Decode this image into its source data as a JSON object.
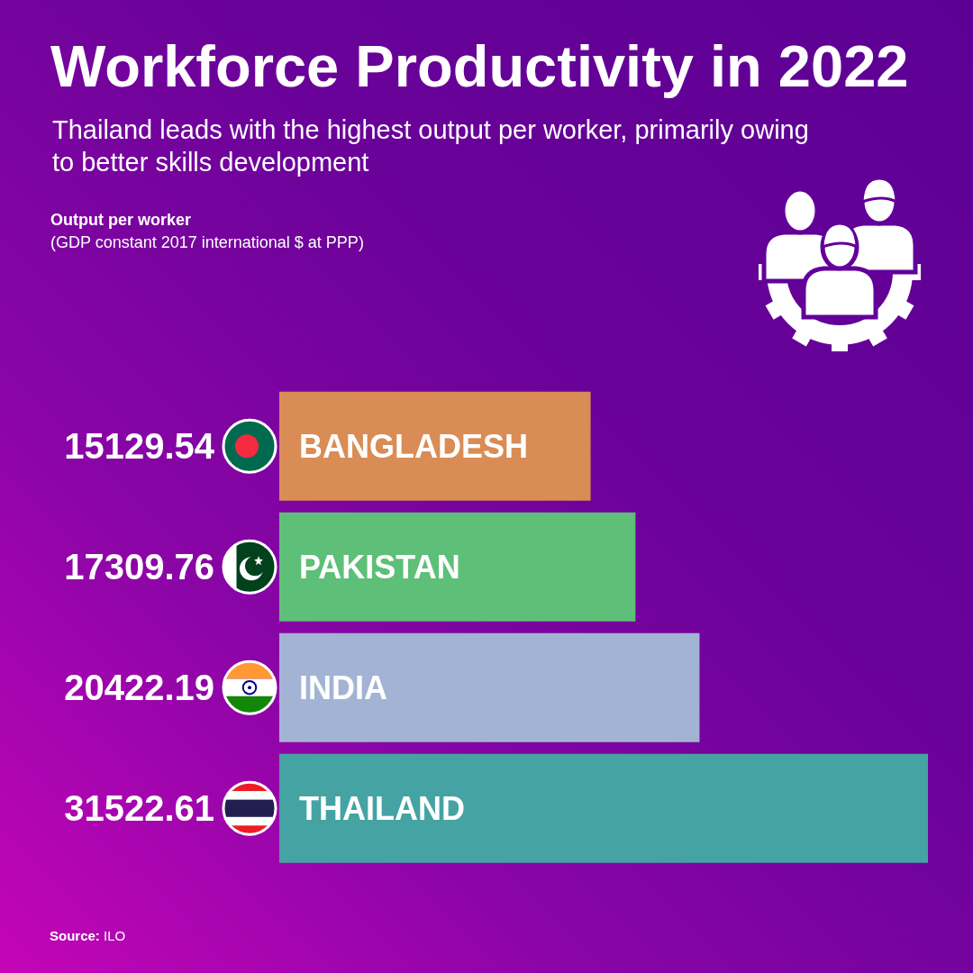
{
  "chart_data": {
    "type": "bar",
    "orientation": "horizontal",
    "title": "Workforce Productivity in 2022",
    "subtitle": "Thailand leads with the highest output per worker, primarily owing to better skills development",
    "categories": [
      "BANGLADESH",
      "PAKISTAN",
      "INDIA",
      "THAILAND"
    ],
    "values": [
      15129.54,
      17309.76,
      20422.19,
      31522.61
    ],
    "colors": [
      "#d98c55",
      "#5dbf78",
      "#a3b3d4",
      "#45a3a4"
    ],
    "data_labels": true,
    "annotations": [
      "Output per worker\n(GDP constant 2017 international $ at PPP)",
      "Source: ILO"
    ]
  }
}
